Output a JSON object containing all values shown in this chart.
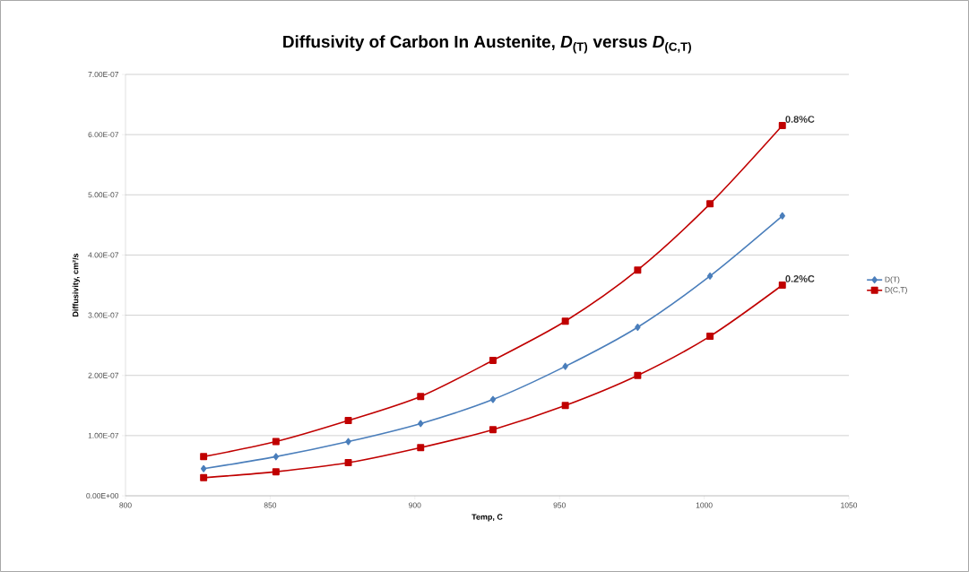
{
  "chart_data": {
    "type": "line",
    "title": "Diffusivity of Carbon In Austenite, *D*$_{(T)}$ versus *D*$_{(C,T)}$",
    "xlabel": "Temp, C",
    "ylabel": "Diffusivity, cm²/s",
    "x": [
      827,
      852,
      877,
      902,
      927,
      952,
      977,
      1002,
      1027
    ],
    "series": [
      {
        "name": "D(T)",
        "color": "#4a7ebb",
        "marker": "diamond",
        "values": [
          4.5e-08,
          6.5e-08,
          9e-08,
          1.2e-07,
          1.6e-07,
          2.15e-07,
          2.8e-07,
          3.65e-07,
          4.65e-07
        ]
      },
      {
        "name": "D(C,T)",
        "color": "#c00000",
        "marker": "square",
        "values": [
          6.5e-08,
          9e-08,
          1.25e-07,
          1.65e-07,
          2.25e-07,
          2.9e-07,
          3.75e-07,
          4.85e-07,
          6.15e-07
        ]
      },
      {
        "color": "#c00000",
        "marker": "square",
        "values": [
          3e-08,
          4e-08,
          5.5e-08,
          8e-08,
          1.1e-07,
          1.5e-07,
          2e-07,
          2.65e-07,
          3.5e-07
        ]
      }
    ],
    "annotations": [
      "0.8%C",
      "0.2%C"
    ],
    "xlim": [
      800,
      1050
    ],
    "xticks": [
      800,
      850,
      900,
      950,
      1000,
      1050
    ],
    "ylim": [
      0,
      7e-07
    ],
    "yticks": [
      {
        "value": 0,
        "label": "0.00E+00"
      },
      {
        "value": 1e-07,
        "label": "1.00E-07"
      },
      {
        "value": 2e-07,
        "label": "2.00E-07"
      },
      {
        "value": 3e-07,
        "label": "3.00E-07"
      },
      {
        "value": 4e-07,
        "label": "4.00E-07"
      },
      {
        "value": 5e-07,
        "label": "5.00E-07"
      },
      {
        "value": 6e-07,
        "label": "6.00E-07"
      },
      {
        "value": 7e-07,
        "label": "7.00E-07"
      }
    ],
    "grid": "y",
    "legend": "right",
    "line_style": "solid"
  }
}
